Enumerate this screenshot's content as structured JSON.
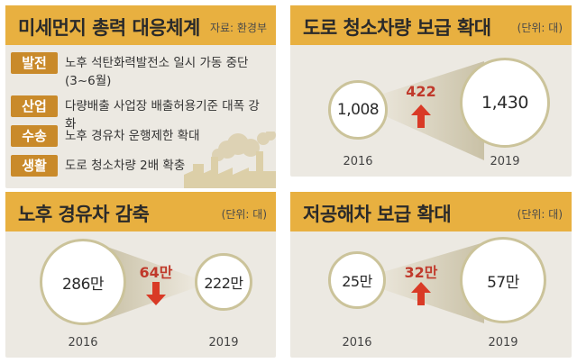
{
  "panel1": {
    "title": "미세먼지 총력 대응체계",
    "source": "자료: 환경부",
    "rows": [
      {
        "tag": "발전",
        "text": "노후 석탄화력발전소 일시 가동 중단",
        "text2": "(3~6월)"
      },
      {
        "tag": "산업",
        "text": "다량배출 사업장 배출허용기준 대폭 강화"
      },
      {
        "tag": "수송",
        "text": "노후 경유차 운행제한 확대"
      },
      {
        "tag": "생활",
        "text": "도로 청소차량 2배 확충"
      }
    ]
  },
  "panel2": {
    "title": "도로 청소차량 보급 확대",
    "unit": "(단위: 대)",
    "from_value": "1,008",
    "to_value": "1,430",
    "delta": "422",
    "from_year": "2016",
    "to_year": "2019",
    "direction": "up"
  },
  "panel3": {
    "title": "노후 경유차 감축",
    "unit": "(단위: 대)",
    "from_value": "286만",
    "to_value": "222만",
    "delta": "64만",
    "from_year": "2016",
    "to_year": "2019",
    "direction": "down"
  },
  "panel4": {
    "title": "저공해차 보급 확대",
    "unit": "(단위: 대)",
    "from_value": "25만",
    "to_value": "57만",
    "delta": "32만",
    "from_year": "2016",
    "to_year": "2019",
    "direction": "up"
  },
  "colors": {
    "header": "#e8b040",
    "tag": "#c98a2a",
    "panel_bg": "#ece9e2",
    "delta_red": "#c0392b",
    "arrow_red": "#d93a26"
  },
  "icons": [
    "factory-illustration",
    "arrow-up-icon",
    "arrow-down-icon"
  ]
}
